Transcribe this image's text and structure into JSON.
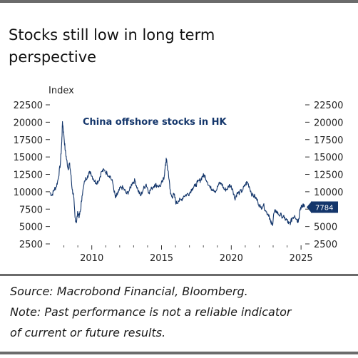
{
  "title_line1": "Stocks still low in long term",
  "title_line2": "perspective",
  "chart_data": {
    "type": "line",
    "ylabel": "Index",
    "annotation": "China offshore stocks in HK",
    "yticks": [
      22500,
      20000,
      17500,
      15000,
      12500,
      10000,
      7500,
      5000,
      2500
    ],
    "ytick_labels": [
      "22500",
      "20000",
      "17500",
      "15000",
      "12500",
      "10000",
      "7500",
      "5000",
      "2500"
    ],
    "xticks": [
      2010,
      2015,
      2020,
      2025
    ],
    "xtick_labels": [
      "2010",
      "2015",
      "2020",
      "2025"
    ],
    "ylim": [
      2500,
      22500
    ],
    "xlim": [
      2007.0,
      2025.3
    ],
    "last_value_label": "7784",
    "series": [
      {
        "color": "#14366b",
        "x": [
          2007.0,
          2007.15,
          2007.3,
          2007.45,
          2007.6,
          2007.75,
          2007.85,
          2007.9,
          2008.0,
          2008.1,
          2008.2,
          2008.3,
          2008.4,
          2008.5,
          2008.6,
          2008.7,
          2008.8,
          2008.9,
          2009.0,
          2009.1,
          2009.2,
          2009.3,
          2009.5,
          2009.7,
          2009.9,
          2010.1,
          2010.3,
          2010.5,
          2010.7,
          2010.9,
          2011.1,
          2011.3,
          2011.5,
          2011.7,
          2011.8,
          2011.9,
          2012.1,
          2012.3,
          2012.5,
          2012.7,
          2012.9,
          2013.1,
          2013.3,
          2013.5,
          2013.7,
          2013.9,
          2014.1,
          2014.3,
          2014.5,
          2014.7,
          2014.9,
          2015.1,
          2015.2,
          2015.3,
          2015.35,
          2015.45,
          2015.55,
          2015.65,
          2015.75,
          2015.9,
          2016.05,
          2016.2,
          2016.4,
          2016.6,
          2016.8,
          2017.0,
          2017.2,
          2017.4,
          2017.6,
          2017.8,
          2017.95,
          2018.1,
          2018.3,
          2018.5,
          2018.7,
          2018.9,
          2019.1,
          2019.3,
          2019.5,
          2019.7,
          2019.9,
          2020.1,
          2020.25,
          2020.4,
          2020.6,
          2020.8,
          2021.0,
          2021.15,
          2021.3,
          2021.5,
          2021.7,
          2021.9,
          2022.1,
          2022.3,
          2022.5,
          2022.7,
          2022.82,
          2022.95,
          2023.05,
          2023.2,
          2023.4,
          2023.6,
          2023.8,
          2024.0,
          2024.1,
          2024.25,
          2024.4,
          2024.55,
          2024.7,
          2024.78,
          2024.85,
          2024.95,
          2025.05,
          2025.15,
          2025.25
        ],
        "values": [
          9900,
          9500,
          10300,
          10700,
          11900,
          14100,
          17200,
          20100,
          18100,
          15900,
          14600,
          13300,
          14100,
          12500,
          10300,
          9300,
          6300,
          5600,
          7100,
          6400,
          7400,
          9400,
          11600,
          12300,
          12900,
          11900,
          11300,
          11600,
          12900,
          13100,
          12600,
          12300,
          11300,
          9100,
          9500,
          9900,
          10700,
          10400,
          9700,
          10200,
          11300,
          11600,
          10300,
          9400,
          10400,
          11100,
          9900,
          10500,
          11000,
          10900,
          10800,
          11600,
          12300,
          14200,
          14700,
          13100,
          11700,
          9700,
          9300,
          9600,
          8300,
          8700,
          8800,
          9400,
          9600,
          9800,
          10500,
          10800,
          11400,
          11700,
          12300,
          12300,
          11400,
          10500,
          10400,
          10100,
          11100,
          11200,
          10300,
          10400,
          11000,
          10400,
          9000,
          9700,
          9900,
          10200,
          11000,
          11400,
          10700,
          9500,
          9300,
          8600,
          7700,
          8100,
          7100,
          6700,
          5600,
          5200,
          6900,
          7300,
          6700,
          6600,
          6200,
          5900,
          5400,
          5600,
          6300,
          6600,
          6000,
          5800,
          6200,
          7600,
          7900,
          8200,
          7784
        ]
      }
    ]
  },
  "notes": [
    "Source: Macrobond Financial, Bloomberg.",
    "Note: Past performance is not a reliable indicator",
    "of current or future results."
  ]
}
